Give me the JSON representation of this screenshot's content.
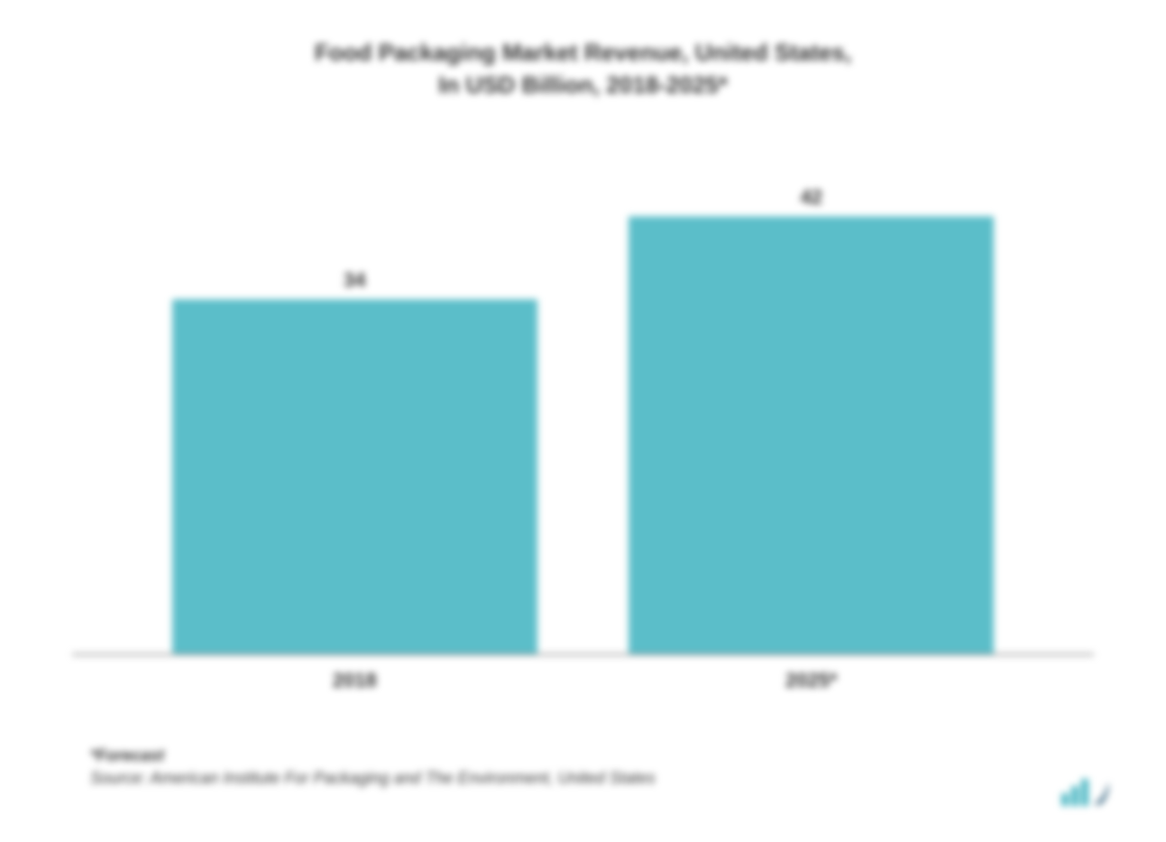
{
  "chart": {
    "type": "bar",
    "title_line1": "Food Packaging Market Revenue, United States,",
    "title_line2": "In USD Billion, 2018-2025*",
    "title_fontsize": 26,
    "title_color": "#333333",
    "categories": [
      "2018",
      "2025*"
    ],
    "values": [
      34,
      42
    ],
    "bar_colors": [
      "#5bbec9",
      "#5bbec9"
    ],
    "value_label_fontsize": 22,
    "value_label_color": "#333333",
    "xlabel_fontsize": 22,
    "xlabel_color": "#333333",
    "background_color": "#ffffff",
    "axis_color": "#888888",
    "ylim": [
      0,
      45
    ],
    "bar_width_pct": 40
  },
  "source": {
    "label": "*Forecast",
    "text": "Source: American Institute For Packaging and The Environment, United States",
    "fontsize": 18,
    "color": "#333333"
  },
  "logo": {
    "bar_color": "#4db8c4",
    "swoosh_color": "#2a5d7a"
  }
}
